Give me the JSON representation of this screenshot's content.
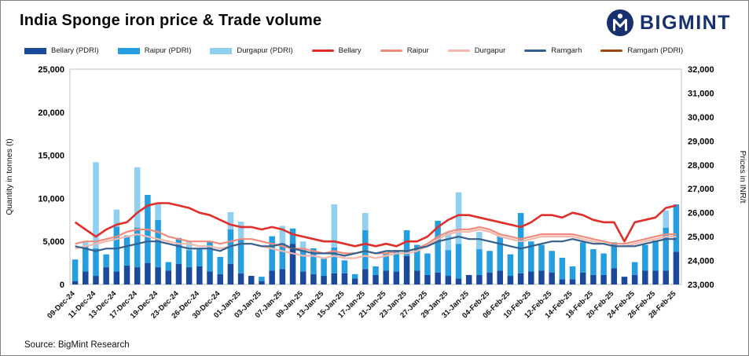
{
  "header": {
    "title": "India Sponge iron price & Trade volume",
    "logo_text": "BIGMINT"
  },
  "source": "Source: BigMint Research",
  "colors": {
    "brand_navy": "#16316e",
    "plot_border": "#bfbfbf"
  },
  "chart_data": {
    "type": "bar",
    "subtype": "stacked-bar-with-lines",
    "title": "India Sponge iron price & Trade volume",
    "left_axis": {
      "label": "Quantity in tonnes (t)",
      "min": 0,
      "max": 25000,
      "step": 5000
    },
    "right_axis": {
      "label": "Prices in INR/t",
      "min": 23000,
      "max": 32000,
      "step": 1000
    },
    "legend_position": "top",
    "grid": false,
    "x": [
      "09-Dec-24",
      "10-Dec-24",
      "11-Dec-24",
      "12-Dec-24",
      "13-Dec-24",
      "16-Dec-24",
      "17-Dec-24",
      "18-Dec-24",
      "19-Dec-24",
      "20-Dec-24",
      "23-Dec-24",
      "24-Dec-24",
      "26-Dec-24",
      "27-Dec-24",
      "30-Dec-24",
      "31-Dec-24",
      "01-Jan-25",
      "02-Jan-25",
      "03-Jan-25",
      "06-Jan-25",
      "07-Jan-25",
      "08-Jan-25",
      "09-Jan-25",
      "10-Jan-25",
      "13-Jan-25",
      "14-Jan-25",
      "15-Jan-25",
      "16-Jan-25",
      "17-Jan-25",
      "20-Jan-25",
      "21-Jan-25",
      "22-Jan-25",
      "23-Jan-25",
      "24-Jan-25",
      "27-Jan-25",
      "28-Jan-25",
      "29-Jan-25",
      "30-Jan-25",
      "31-Jan-25",
      "03-Feb-25",
      "04-Feb-25",
      "05-Feb-25",
      "06-Feb-25",
      "07-Feb-25",
      "10-Feb-25",
      "11-Feb-25",
      "12-Feb-25",
      "13-Feb-25",
      "14-Feb-25",
      "17-Feb-25",
      "18-Feb-25",
      "19-Feb-25",
      "20-Feb-25",
      "21-Feb-25",
      "24-Feb-25",
      "25-Feb-25",
      "26-Feb-25",
      "27-Feb-25",
      "28-Feb-25"
    ],
    "x_label_every": 2,
    "bar_series": [
      {
        "name": "Bellary (PDRI)",
        "color": "#1b4a9b",
        "values": [
          400,
          1500,
          1000,
          2000,
          1500,
          2200,
          2000,
          2500,
          2000,
          1600,
          2400,
          2000,
          2100,
          1500,
          1200,
          2400,
          1300,
          1000,
          400,
          1600,
          1800,
          4700,
          1500,
          1200,
          1000,
          1300,
          1300,
          700,
          1800,
          1100,
          1600,
          1500,
          3300,
          1600,
          1100,
          1400,
          1000,
          700,
          1100,
          1100,
          1400,
          1600,
          1000,
          1300,
          1500,
          1600,
          1400,
          600,
          600,
          1400,
          1100,
          1100,
          1900,
          900,
          1100,
          1600,
          1600,
          1600,
          3800
        ]
      },
      {
        "name": "Raipur (PDRI)",
        "color": "#259edf",
        "values": [
          2500,
          3000,
          3200,
          1500,
          5200,
          3500,
          4600,
          7900,
          5500,
          1000,
          3000,
          2000,
          2000,
          3500,
          2000,
          4000,
          4000,
          0,
          500,
          4000,
          3000,
          1800,
          2500,
          3000,
          2000,
          3000,
          1500,
          500,
          4500,
          1000,
          2000,
          2500,
          3000,
          3000,
          2500,
          6000,
          3000,
          4000,
          0,
          3000,
          2500,
          4000,
          2500,
          7000,
          3500,
          3000,
          2500,
          2500,
          1500,
          3500,
          3000,
          2500,
          3000,
          0,
          1500,
          3000,
          3500,
          5000,
          5500
        ]
      },
      {
        "name": "Durgapur (PDRI)",
        "color": "#8fcff0",
        "values": [
          0,
          500,
          10000,
          0,
          2000,
          0,
          7000,
          0,
          2000,
          0,
          0,
          1000,
          0,
          0,
          0,
          2000,
          2000,
          0,
          0,
          0,
          2000,
          0,
          1000,
          0,
          0,
          5000,
          0,
          0,
          2000,
          0,
          0,
          0,
          0,
          0,
          0,
          0,
          2000,
          6000,
          0,
          2000,
          0,
          0,
          0,
          0,
          0,
          0,
          0,
          0,
          0,
          0,
          0,
          0,
          0,
          0,
          0,
          0,
          0,
          2000,
          0
        ]
      }
    ],
    "line_series": [
      {
        "name": "Bellary",
        "color": "#e02f2a",
        "width": 2.6,
        "values": [
          25600,
          25300,
          25000,
          25300,
          25500,
          25600,
          26000,
          26300,
          26400,
          26400,
          26300,
          26200,
          26000,
          25900,
          25700,
          25500,
          25400,
          25400,
          25300,
          25400,
          25300,
          25100,
          25000,
          24900,
          24800,
          24800,
          24700,
          24600,
          24700,
          24600,
          24700,
          24600,
          24800,
          24800,
          25000,
          25400,
          25700,
          25900,
          25900,
          25800,
          25700,
          25600,
          25500,
          25400,
          25600,
          25900,
          25900,
          25800,
          26000,
          25900,
          25700,
          25600,
          25600,
          24800,
          25600,
          25700,
          25800,
          26200,
          26300
        ]
      },
      {
        "name": "Raipur",
        "color": "#f08b7c",
        "width": 2.2,
        "values": [
          24700,
          24800,
          24800,
          24900,
          25000,
          25200,
          25300,
          25300,
          25200,
          25000,
          24900,
          24800,
          24800,
          24800,
          24700,
          24800,
          24900,
          24900,
          24800,
          24700,
          24600,
          24500,
          24500,
          24400,
          24300,
          24400,
          24300,
          24300,
          24400,
          24300,
          24300,
          24400,
          24400,
          24500,
          24700,
          25000,
          25200,
          25300,
          25300,
          25400,
          25300,
          25100,
          25000,
          24900,
          25000,
          25100,
          25100,
          25100,
          25100,
          25000,
          24900,
          24800,
          24700,
          24700,
          24800,
          24900,
          25000,
          25100,
          25100
        ]
      },
      {
        "name": "Durgapur",
        "color": "#f4b7ab",
        "width": 2.2,
        "values": [
          24500,
          24600,
          24700,
          24800,
          24900,
          25000,
          25100,
          25000,
          24900,
          24800,
          24700,
          24700,
          24600,
          24600,
          24500,
          24600,
          24700,
          24700,
          24600,
          24500,
          24400,
          24300,
          24200,
          24200,
          24100,
          24200,
          24100,
          24100,
          24200,
          24100,
          24200,
          24300,
          24300,
          24400,
          24600,
          24900,
          25100,
          25200,
          25200,
          25300,
          25200,
          25000,
          24900,
          24800,
          24900,
          25000,
          25000,
          25000,
          25000,
          24900,
          24800,
          24700,
          24600,
          24600,
          24700,
          24800,
          24900,
          25000,
          25000
        ]
      },
      {
        "name": "Ramgarh",
        "color": "#35608d",
        "width": 2.2,
        "values": [
          24600,
          24500,
          24400,
          24500,
          24500,
          24600,
          24700,
          24800,
          24800,
          24700,
          24600,
          24500,
          24500,
          24500,
          24400,
          24600,
          24700,
          24700,
          24600,
          24600,
          24700,
          24500,
          24400,
          24300,
          24300,
          24300,
          24200,
          24300,
          24400,
          24300,
          24400,
          24400,
          24400,
          24500,
          24600,
          24800,
          24900,
          25000,
          24900,
          24900,
          24800,
          24700,
          24600,
          24500,
          24600,
          24700,
          24800,
          24800,
          24900,
          24800,
          24700,
          24700,
          24600,
          24600,
          24600,
          24700,
          24800,
          24900,
          24900
        ]
      },
      {
        "name": "Ramgarh (PDRI)",
        "color": "#9b4a0b",
        "width": 2.2,
        "values": []
      }
    ]
  }
}
